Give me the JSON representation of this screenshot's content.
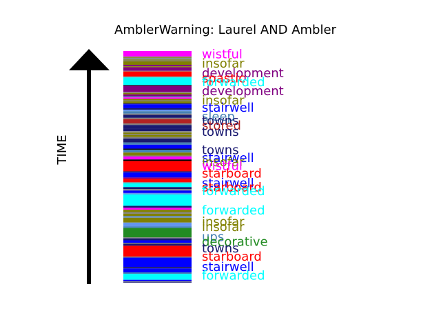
{
  "chart_data": {
    "type": "bar",
    "title": "AmblerWarning: Laurel AND Ambler",
    "ylabel": "TIME",
    "colors": {
      "magenta": "#ff00ff",
      "olive": "#808000",
      "purple": "#800080",
      "red": "#ff0000",
      "cyan": "#00ffff",
      "blue": "#0000ff",
      "steelblue": "#4682b4",
      "firebrick": "#b22222",
      "navy": "#191970",
      "green": "#228b22",
      "cornflower": "#6495ed",
      "gray": "#808080",
      "black": "#000000"
    },
    "segments": [
      {
        "t": 0.0,
        "c": "magenta"
      },
      {
        "t": 2.2,
        "c": "gray"
      },
      {
        "t": 2.6,
        "c": "olive"
      },
      {
        "t": 3.0,
        "c": "cornflower"
      },
      {
        "t": 3.4,
        "c": "olive"
      },
      {
        "t": 3.8,
        "c": "gray"
      },
      {
        "t": 4.2,
        "c": "olive"
      },
      {
        "t": 5.6,
        "c": "purple"
      },
      {
        "t": 6.2,
        "c": "olive"
      },
      {
        "t": 6.6,
        "c": "purple"
      },
      {
        "t": 8.0,
        "c": "gray"
      },
      {
        "t": 8.3,
        "c": "red"
      },
      {
        "t": 10.3,
        "c": "gray"
      },
      {
        "t": 10.7,
        "c": "cyan"
      },
      {
        "t": 13.8,
        "c": "black"
      },
      {
        "t": 14.1,
        "c": "purple"
      },
      {
        "t": 16.6,
        "c": "gray"
      },
      {
        "t": 17.0,
        "c": "olive"
      },
      {
        "t": 17.6,
        "c": "purple"
      },
      {
        "t": 18.4,
        "c": "steelblue"
      },
      {
        "t": 18.8,
        "c": "magenta"
      },
      {
        "t": 19.4,
        "c": "olive"
      },
      {
        "t": 20.0,
        "c": "gray"
      },
      {
        "t": 20.4,
        "c": "olive"
      },
      {
        "t": 21.2,
        "c": "navy"
      },
      {
        "t": 21.6,
        "c": "blue"
      },
      {
        "t": 23.2,
        "c": "navy"
      },
      {
        "t": 23.8,
        "c": "cornflower"
      },
      {
        "t": 24.4,
        "c": "steelblue"
      },
      {
        "t": 25.4,
        "c": "gray"
      },
      {
        "t": 25.9,
        "c": "navy"
      },
      {
        "t": 27.1,
        "c": "gray"
      },
      {
        "t": 27.6,
        "c": "firebrick"
      },
      {
        "t": 29.4,
        "c": "gray"
      },
      {
        "t": 30.0,
        "c": "navy"
      },
      {
        "t": 31.6,
        "c": "navy"
      },
      {
        "t": 32.5,
        "c": "gray"
      },
      {
        "t": 33.1,
        "c": "olive"
      },
      {
        "t": 33.7,
        "c": "gray"
      },
      {
        "t": 34.1,
        "c": "olive"
      },
      {
        "t": 34.9,
        "c": "gray"
      },
      {
        "t": 35.5,
        "c": "navy"
      },
      {
        "t": 37.1,
        "c": "steelblue"
      },
      {
        "t": 38.0,
        "c": "blue"
      },
      {
        "t": 39.6,
        "c": "black"
      },
      {
        "t": 40.0,
        "c": "steelblue"
      },
      {
        "t": 41.2,
        "c": "olive"
      },
      {
        "t": 42.4,
        "c": "gray"
      },
      {
        "t": 42.8,
        "c": "magenta"
      },
      {
        "t": 44.0,
        "c": "black"
      },
      {
        "t": 44.6,
        "c": "red"
      },
      {
        "t": 48.8,
        "c": "navy"
      },
      {
        "t": 49.3,
        "c": "blue"
      },
      {
        "t": 51.3,
        "c": "purple"
      },
      {
        "t": 51.8,
        "c": "red"
      },
      {
        "t": 53.2,
        "c": "gray"
      },
      {
        "t": 53.6,
        "c": "cyan"
      },
      {
        "t": 55.2,
        "c": "navy"
      },
      {
        "t": 56.0,
        "c": "gray"
      },
      {
        "t": 56.6,
        "c": "blue"
      },
      {
        "t": 57.6,
        "c": "cornflower"
      },
      {
        "t": 58.2,
        "c": "cyan"
      },
      {
        "t": 62.8,
        "c": "navy"
      },
      {
        "t": 63.6,
        "c": "magenta"
      },
      {
        "t": 64.4,
        "c": "olive"
      },
      {
        "t": 65.4,
        "c": "gray"
      },
      {
        "t": 66.0,
        "c": "olive"
      },
      {
        "t": 67.0,
        "c": "cornflower"
      },
      {
        "t": 67.6,
        "c": "olive"
      },
      {
        "t": 69.6,
        "c": "cornflower"
      },
      {
        "t": 71.2,
        "c": "steelblue"
      },
      {
        "t": 71.8,
        "c": "green"
      },
      {
        "t": 75.6,
        "c": "gray"
      },
      {
        "t": 76.0,
        "c": "navy"
      },
      {
        "t": 76.8,
        "c": "blue"
      },
      {
        "t": 77.8,
        "c": "gray"
      },
      {
        "t": 78.2,
        "c": "navy"
      },
      {
        "t": 79.0,
        "c": "red"
      },
      {
        "t": 83.4,
        "c": "gray"
      },
      {
        "t": 83.8,
        "c": "blue"
      },
      {
        "t": 87.6,
        "c": "navy"
      },
      {
        "t": 88.2,
        "c": "blue"
      },
      {
        "t": 89.8,
        "c": "steelblue"
      },
      {
        "t": 90.4,
        "c": "cyan"
      },
      {
        "t": 92.8,
        "c": "blue"
      },
      {
        "t": 93.4,
        "c": "gray"
      },
      {
        "t": 93.8,
        "c": "navy"
      },
      {
        "t": 94.0,
        "c": "end"
      }
    ],
    "labels": [
      {
        "text": "wistful",
        "c": "magenta",
        "t": 1.2
      },
      {
        "text": "insofar",
        "c": "olive",
        "t": 5.0
      },
      {
        "text": "development",
        "c": "purple",
        "t": 9.0
      },
      {
        "text": "spastic",
        "c": "red",
        "t": 11.0
      },
      {
        "text": "forwarded",
        "c": "cyan",
        "t": 12.6
      },
      {
        "text": "development",
        "c": "purple",
        "t": 16.2
      },
      {
        "text": "insofar",
        "c": "olive",
        "t": 20.0
      },
      {
        "text": "stairwell",
        "c": "blue",
        "t": 23.0
      },
      {
        "text": "sleep",
        "c": "steelblue",
        "t": 26.6
      },
      {
        "text": "towns",
        "c": "navy",
        "t": 28.2
      },
      {
        "text": "stored",
        "c": "firebrick",
        "t": 30.2
      },
      {
        "text": "towns",
        "c": "navy",
        "t": 32.8
      },
      {
        "text": "towns",
        "c": "navy",
        "t": 40.2
      },
      {
        "text": "stairwell",
        "c": "blue",
        "t": 43.4
      },
      {
        "text": "insofar",
        "c": "olive",
        "t": 45.0
      },
      {
        "text": "wistful",
        "c": "magenta",
        "t": 46.6
      },
      {
        "text": "starboard",
        "c": "red",
        "t": 49.6
      },
      {
        "text": "stairwell",
        "c": "blue",
        "t": 53.6
      },
      {
        "text": "starboard",
        "c": "red",
        "t": 55.2
      },
      {
        "text": "forwarded",
        "c": "cyan",
        "t": 56.8
      },
      {
        "text": "forwarded",
        "c": "cyan",
        "t": 64.6
      },
      {
        "text": "insofar",
        "c": "olive",
        "t": 69.2
      },
      {
        "text": "insofar",
        "c": "olive",
        "t": 71.4
      },
      {
        "text": "ups",
        "c": "steelblue",
        "t": 75.4
      },
      {
        "text": "decorative",
        "c": "green",
        "t": 77.4
      },
      {
        "text": "towns",
        "c": "navy",
        "t": 80.0
      },
      {
        "text": "starboard",
        "c": "red",
        "t": 83.4
      },
      {
        "text": "stairwell",
        "c": "blue",
        "t": 87.6
      },
      {
        "text": "forwarded",
        "c": "cyan",
        "t": 91.0
      }
    ]
  }
}
